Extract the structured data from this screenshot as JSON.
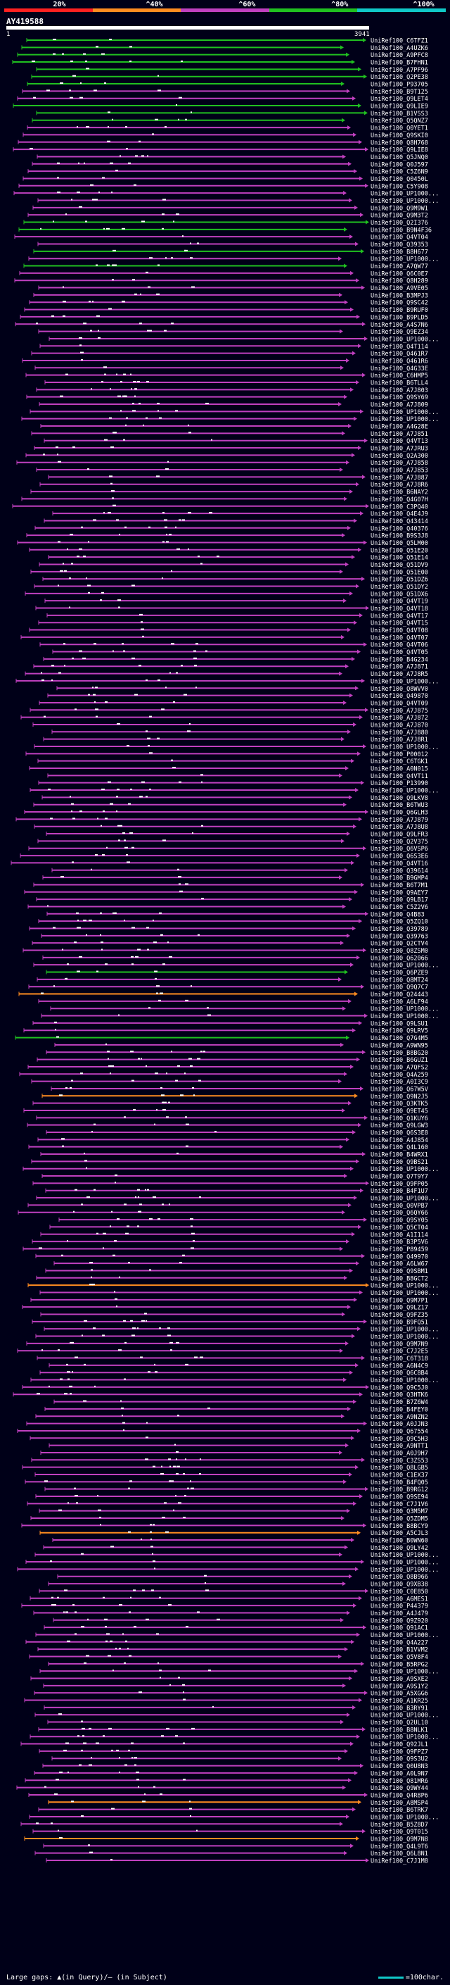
{
  "legend": {
    "labels": [
      "20%",
      "^40%",
      "^60%",
      "^80%",
      "^100%"
    ],
    "colors": [
      "#ff2020",
      "#ff8c20",
      "#c040c0",
      "#20c020",
      "#10c8c8"
    ]
  },
  "query": {
    "name": "AY419588",
    "start": "1",
    "end": "3941"
  },
  "colors": {
    "background": "#000018",
    "hit_purple": "#c040c0",
    "hit_green": "#20c020",
    "hit_orange": "#ff8c20",
    "label_text": "#ffffff",
    "gap_marks": "#ffffff"
  },
  "hits": {
    "labels": [
      "UniRef100_C6TFZ1",
      "UniRef100_A4UZK6",
      "UniRef100_A9PFC8",
      "UniRef100_B7FHN1",
      "UniRef100_A7PF96",
      "UniRef100_Q2PE38",
      "UniRef100_P93705",
      "UniRef100_B9T125",
      "UniRef100_Q9LET4",
      "UniRef100_Q9LIE9",
      "UniRef100_B1VSS3",
      "UniRef100_Q5QNZ7",
      "UniRef100_Q0YET1",
      "UniRef100_Q9SKI0",
      "UniRef100_Q8H768",
      "UniRef100_Q9LIE8",
      "UniRef100_Q5JNQ0",
      "UniRef100_Q0J597",
      "UniRef100_C5Z6N9",
      "UniRef100_Q0450L",
      "UniRef100_C5Y908",
      "UniRef100_UP1000...",
      "UniRef100_UP1000...",
      "UniRef100_Q9M9W1",
      "UniRef100_Q9M3T2",
      "UniRef100_Q2I376",
      "UniRef100_B9N4F36",
      "UniRef100_Q4VT04",
      "UniRef100_Q39353",
      "UniRef100_B8H677",
      "UniRef100_UP1000...",
      "UniRef100_A7QW77",
      "UniRef100_Q6C0E7",
      "UniRef100_Q8H289",
      "UniRef100_A9VE05",
      "UniRef100_B3MPJ3",
      "UniRef100_Q9SC42",
      "UniRef100_B9RUF0",
      "UniRef100_B9PLD5",
      "UniRef100_A4S7N6",
      "UniRef100_Q9EZ34",
      "UniRef100_UP1000...",
      "UniRef100_Q4T114",
      "UniRef100_Q461R7",
      "UniRef100_Q461R6",
      "UniRef100_Q4G33E",
      "UniRef100_C6HMP5",
      "UniRef100_B6TLL4",
      "UniRef100_A7J803",
      "UniRef100_Q9SY69",
      "UniRef100_A7J809",
      "UniRef100_UP1000...",
      "UniRef100_UP1000...",
      "UniRef100_A4G28E",
      "UniRef100_A7J851",
      "UniRef100_Q4VT13",
      "UniRef100_A7JRU3",
      "UniRef100_Q2A300",
      "UniRef100_A7J858",
      "UniRef100_A7J853",
      "UniRef100_A7J887",
      "UniRef100_A7J8R6",
      "UniRef100_B6NAY2",
      "UniRef100_Q4G07H",
      "UniRef100_C3PQ40",
      "UniRef100_Q4E4J9",
      "UniRef100_Q43414",
      "UniRef100_Q40376",
      "UniRef100_B9S3J8",
      "UniRef100_Q5LM00",
      "UniRef100_Q51E20",
      "UniRef100_Q51E14",
      "UniRef100_Q51DV9",
      "UniRef100_Q51E00",
      "UniRef100_Q51DZ6",
      "UniRef100_Q51DY2",
      "UniRef100_Q51DX6",
      "UniRef100_Q4VT19",
      "UniRef100_Q4VT18",
      "UniRef100_Q4VT17",
      "UniRef100_Q4VT15",
      "UniRef100_Q4VT08",
      "UniRef100_Q4VT07",
      "UniRef100_Q4VT06",
      "UniRef100_Q4VT05",
      "UniRef100_B4G234",
      "UniRef100_A7J871",
      "UniRef100_A7J8R5",
      "UniRef100_UP1000...",
      "UniRef100_Q8WVV0",
      "UniRef100_Q49870",
      "UniRef100_Q4VT09",
      "UniRef100_A7J875",
      "UniRef100_A7J872",
      "UniRef100_A7J870",
      "UniRef100_A7J880",
      "UniRef100_A7J8R1",
      "UniRef100_UP1000...",
      "UniRef100_P00012",
      "UniRef100_C6TGK1",
      "UniRef100_A0N015",
      "UniRef100_Q4VT11",
      "UniRef100_P13990",
      "UniRef100_UP1000...",
      "UniRef100_Q9LKV8",
      "UniRef100_B6TWU3",
      "UniRef100_Q6GLH3",
      "UniRef100_A7J879",
      "UniRef100_A7J8U8",
      "UniRef100_Q9LFR3",
      "UniRef100_Q2V375",
      "UniRef100_Q6VSP6",
      "UniRef100_Q6S3E6",
      "UniRef100_Q4VT16",
      "UniRef100_Q39614",
      "UniRef100_B9GMP4",
      "UniRef100_B6T7M1",
      "UniRef100_Q9AEY7",
      "UniRef100_Q9LB17",
      "UniRef100_C5Z2V6",
      "UniRef100_Q4B83",
      "UniRef100_Q5ZQ10",
      "UniRef100_Q39789",
      "UniRef100_Q39763",
      "UniRef100_Q2CTV4",
      "UniRef100_Q8ZSM0",
      "UniRef100_Q62066",
      "UniRef100_UP1000...",
      "UniRef100_Q6PZE9",
      "UniRef100_Q8MT24",
      "UniRef100_Q9Q7C7",
      "UniRef100_Q24443",
      "UniRef100_A6LF94",
      "UniRef100_UP1000...",
      "UniRef100_UP1000...",
      "UniRef100_Q9LSU1",
      "UniRef100_Q9LRV5",
      "UniRef100_Q7G4M5",
      "UniRef100_A9WN95",
      "UniRef100_B8BG20",
      "UniRef100_B6GUZ1",
      "UniRef100_A7QFS2",
      "UniRef100_Q4A259",
      "UniRef100_A0I3C9",
      "UniRef100_Q67W5V",
      "UniRef100_Q9N2J5",
      "UniRef100_Q3KTK5",
      "UniRef100_Q9ET45",
      "UniRef100_Q1KUY6",
      "UniRef100_Q9LGW3",
      "UniRef100_Q6S3E8",
      "UniRef100_A4J854",
      "UniRef100_Q4L160",
      "UniRef100_B4WRX1",
      "UniRef100_Q9BS21",
      "UniRef100_UP1000...",
      "UniRef100_Q7T9Y7",
      "UniRef100_Q9FP05",
      "UniRef100_B4F1U7",
      "UniRef100_UP1000...",
      "UniRef100_Q0VPB7",
      "UniRef100_Q6QY66",
      "UniRef100_Q9SY05",
      "UniRef100_Q5CT04",
      "UniRef100_A1I114",
      "UniRef100_B3P5V6",
      "UniRef100_P89459",
      "UniRef100_Q49970",
      "UniRef100_A6LW67",
      "UniRef100_Q9SBM1",
      "UniRef100_B8GCT2",
      "UniRef100_UP1000...",
      "UniRef100_UP1000...",
      "UniRef100_Q9M7P1",
      "UniRef100_Q9LZ17",
      "UniRef100_Q9FZ35",
      "UniRef100_B9FQ51",
      "UniRef100_UP1000...",
      "UniRef100_UP1000...",
      "UniRef100_Q9M7N9",
      "UniRef100_C7J2E5",
      "UniRef100_C6T318",
      "UniRef100_A6N4C9",
      "UniRef100_Q6C8B4",
      "UniRef100_UP1000...",
      "UniRef100_Q9C5J0",
      "UniRef100_Q3HTK6",
      "UniRef100_B7Z6W4",
      "UniRef100_B4FEY0",
      "UniRef100_A9NZN2",
      "UniRef100_A0JJN3",
      "UniRef100_Q67554",
      "UniRef100_Q9C5H3",
      "UniRef100_A9NTT1",
      "UniRef100_A0J9H7",
      "UniRef100_C3ZS53",
      "UniRef100_Q8LGB5",
      "UniRef100_C1EX37",
      "UniRef100_B4FQ05",
      "UniRef100_B9RG12",
      "UniRef100_Q9SE94",
      "UniRef100_C7J1V6",
      "UniRef100_Q3M5M7",
      "UniRef100_Q5ZDM5",
      "UniRef100_B8BCY9",
      "UniRef100_A5CJL3",
      "UniRef100_B0WN60",
      "UniRef100_Q9LY42",
      "UniRef100_UP1000...",
      "UniRef100_UP1000...",
      "UniRef100_UP1000...",
      "UniRef100_Q8B966",
      "UniRef100_Q9XB38",
      "UniRef100_C0E850",
      "UniRef100_A6MES1",
      "UniRef100_P44379",
      "UniRef100_A4J479",
      "UniRef100_Q9Z920",
      "UniRef100_Q91AC1",
      "UniRef100_UP1000...",
      "UniRef100_Q4A227",
      "UniRef100_B1VVM2",
      "UniRef100_Q5V8F4",
      "UniRef100_B5RPG2",
      "UniRef100_UP1000...",
      "UniRef100_A9SXE2",
      "UniRef100_A9S1Y2",
      "UniRef100_A5XGG6",
      "UniRef100_A1KR25",
      "UniRef100_B3RY91",
      "UniRef100_UP1000...",
      "UniRef100_Q2UL10",
      "UniRef100_B8NLK1",
      "UniRef100_UP1000...",
      "UniRef100_Q92JL1",
      "UniRef100_Q9FPZ7",
      "UniRef100_Q9S3U2",
      "UniRef100_Q0U8N3",
      "UniRef100_A0L9N7",
      "UniRef100_Q81MR6",
      "UniRef100_Q9WY44",
      "UniRef100_Q4R8P6",
      "UniRef100_A8MSP4",
      "UniRef100_B6TRK7",
      "UniRef100_UP1000...",
      "UniRef100_B5Z8D7",
      "UniRef100_Q9T015",
      "UniRef100_Q9M7N8",
      "UniRef100_Q4L9T6",
      "UniRef100_Q6L8N1",
      "UniRef100_C7J1M8"
    ]
  },
  "footer": {
    "gap_note": "Large gaps: ▲(in Query)/– (in Subject)",
    "scale_label": "=100char."
  }
}
